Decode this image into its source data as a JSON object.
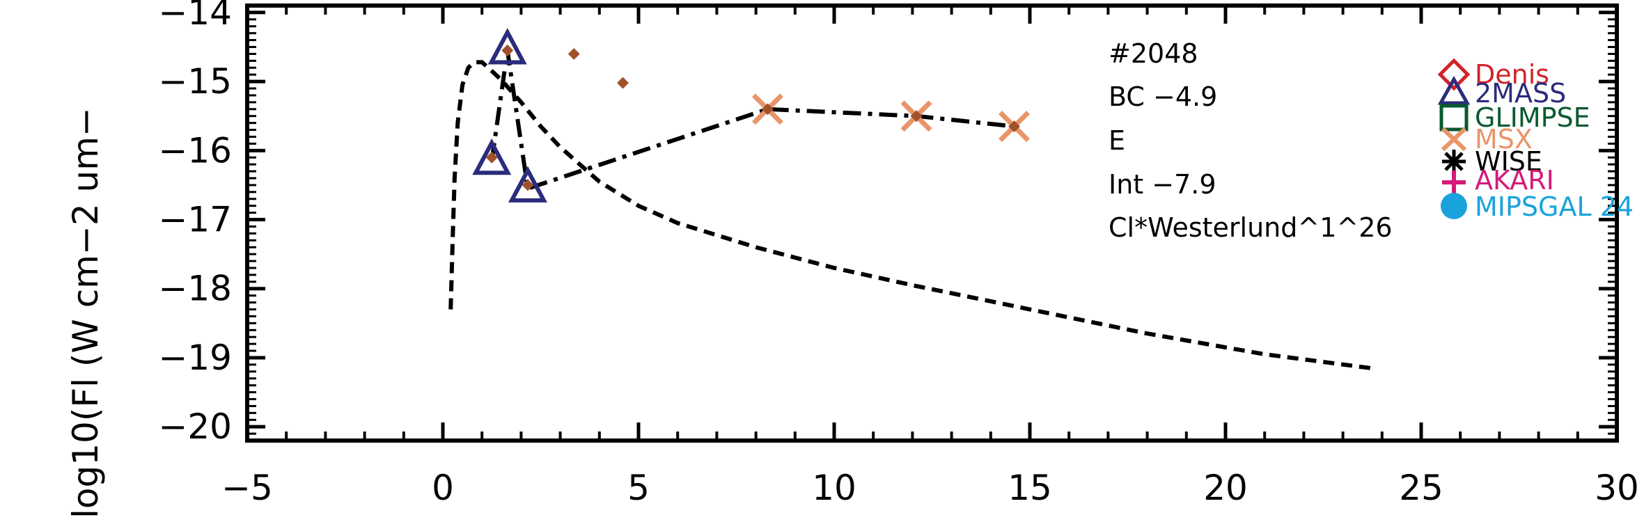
{
  "chart_data": {
    "type": "scatter",
    "title": "",
    "xlabel": "",
    "ylabel": "log10(Fl (W cm−2 um−",
    "xlim": [
      -5,
      30
    ],
    "ylim": [
      -20.2,
      -13.9
    ],
    "x_ticks": [
      -5,
      0,
      5,
      10,
      15,
      20,
      25,
      30
    ],
    "x_tick_labels": [
      "−5",
      "0",
      "5",
      "10",
      "15",
      "20",
      "25",
      "30"
    ],
    "y_ticks": [
      -20,
      -19,
      -18,
      -17,
      -16,
      -15,
      -14
    ],
    "y_tick_labels": [
      "−20",
      "−19",
      "−18",
      "−17",
      "−16",
      "−15",
      "−14"
    ],
    "annotations": [
      "#2048",
      "BC −4.9",
      "E",
      "Int −7.9",
      "Cl*Westerlund^1^26"
    ],
    "legend": {
      "position": "right",
      "entries": [
        {
          "name": "Denis",
          "marker": "diamond",
          "color": "#d2232a"
        },
        {
          "name": "2MASS",
          "marker": "triangle",
          "color": "#2b2c7c"
        },
        {
          "name": "GLIMPSE",
          "marker": "square",
          "color": "#0a5a2e"
        },
        {
          "name": "MSX",
          "marker": "x",
          "color": "#e8956a"
        },
        {
          "name": "WISE",
          "marker": "asterisk",
          "color": "#000000"
        },
        {
          "name": "AKARI",
          "marker": "plus",
          "color": "#d6197a"
        },
        {
          "name": "MIPSGAL 24",
          "marker": "circle",
          "color": "#19a3dc"
        }
      ]
    },
    "series": [
      {
        "marker": "triangle",
        "color": "#2b2c7c",
        "x": [
          1.25,
          1.65,
          2.17
        ],
        "y": [
          -16.15,
          -14.55,
          -16.55
        ]
      },
      {
        "marker": "x",
        "color": "#e8956a",
        "x": [
          8.3,
          12.1,
          14.6
        ],
        "y": [
          -15.4,
          -15.5,
          -15.65
        ]
      },
      {
        "marker": "small-diamond",
        "color": "#a0522d",
        "x": [
          1.25,
          1.65,
          2.17,
          3.35,
          4.6,
          8.3,
          12.1,
          14.6
        ],
        "y": [
          -16.1,
          -14.55,
          -16.5,
          -14.6,
          -15.02,
          -15.4,
          -15.5,
          -15.65
        ]
      },
      {
        "style": "dash-dot",
        "color": "#000000",
        "x": [
          1.25,
          1.65,
          2.17,
          8.3,
          12.1,
          14.6
        ],
        "y": [
          -16.15,
          -14.55,
          -16.55,
          -15.4,
          -15.5,
          -15.65
        ]
      },
      {
        "style": "dashed",
        "color": "#000000",
        "x": [
          0.2,
          0.25,
          0.3,
          0.38,
          0.5,
          0.65,
          0.8,
          1.0,
          1.2,
          1.5,
          2.0,
          2.5,
          3.0,
          4.0,
          5.0,
          6.0,
          8.0,
          10.0,
          12.0,
          15.0,
          18.0,
          21.0,
          23.7
        ],
        "y": [
          -18.3,
          -17.3,
          -16.4,
          -15.6,
          -15.05,
          -14.8,
          -14.72,
          -14.72,
          -14.82,
          -14.98,
          -15.3,
          -15.65,
          -15.95,
          -16.45,
          -16.8,
          -17.05,
          -17.4,
          -17.7,
          -17.95,
          -18.3,
          -18.65,
          -18.95,
          -19.15
        ]
      }
    ]
  }
}
